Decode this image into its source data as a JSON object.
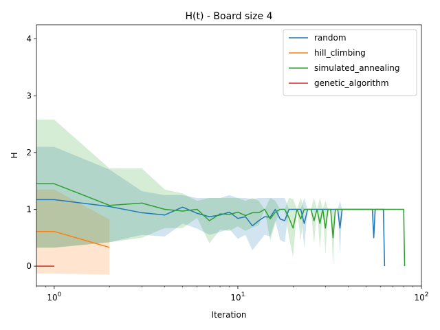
{
  "chart_data": {
    "type": "line",
    "title": "H(t) - Board size 4",
    "xlabel": "Iteration",
    "ylabel": "H",
    "xscale": "log",
    "xlim": [
      0.8,
      100
    ],
    "ylim": [
      -0.35,
      4.25
    ],
    "xticks": [
      {
        "value": 1,
        "base": "10",
        "exp": "0"
      },
      {
        "value": 10,
        "base": "10",
        "exp": "1"
      },
      {
        "value": 100,
        "base": "10",
        "exp": "2"
      }
    ],
    "yticks": [
      0,
      1,
      2,
      3,
      4
    ],
    "grid": false,
    "legend_position": "top-right",
    "series": [
      {
        "name": "random",
        "color": "#1f77b4",
        "x": [
          0.8,
          1,
          2,
          3,
          4,
          5,
          6,
          7,
          8,
          9,
          10,
          11,
          12,
          13,
          14,
          15,
          16,
          17,
          18,
          19,
          20,
          21,
          22,
          23,
          24,
          25,
          26,
          27,
          28,
          29,
          30,
          31,
          32,
          33,
          34,
          35,
          36,
          37,
          38,
          40,
          45,
          50,
          54,
          55,
          56,
          60,
          62,
          63
        ],
        "y": [
          1.17,
          1.17,
          1.05,
          0.94,
          0.9,
          1.04,
          0.93,
          0.87,
          0.9,
          0.95,
          0.84,
          0.87,
          0.71,
          0.8,
          0.87,
          0.86,
          1.0,
          0.83,
          0.8,
          1.0,
          1.0,
          1.0,
          1.0,
          0.75,
          1.0,
          1.0,
          1.0,
          1.0,
          1.0,
          1.0,
          1.0,
          1.0,
          1.0,
          1.0,
          1.0,
          1.0,
          0.67,
          1.0,
          1.0,
          1.0,
          1.0,
          1.0,
          1.0,
          0.5,
          1.0,
          1.0,
          1.0,
          0.0
        ],
        "band_upper": [
          2.1,
          2.1,
          1.7,
          1.32,
          1.25,
          1.25,
          1.2,
          1.2,
          1.2,
          1.25,
          1.2,
          1.2,
          1.18,
          1.2,
          1.2,
          1.2,
          1.2,
          1.2,
          1.2,
          1.0,
          1.0,
          1.0,
          1.0,
          1.2,
          1.0,
          1.0,
          1.0,
          1.0,
          1.0,
          1.0,
          1.0,
          1.0,
          1.0,
          1.0,
          1.0,
          1.0,
          1.15,
          1.0,
          1.0,
          1.0,
          1.0,
          1.0,
          1.0,
          1.0,
          1.0,
          1.0,
          1.0,
          1.0
        ],
        "band_lower": [
          0.33,
          0.33,
          0.42,
          0.55,
          0.52,
          0.75,
          0.66,
          0.55,
          0.6,
          0.65,
          0.48,
          0.55,
          0.28,
          0.42,
          0.55,
          0.52,
          0.8,
          0.46,
          0.42,
          1.0,
          1.0,
          1.0,
          1.0,
          0.32,
          1.0,
          1.0,
          1.0,
          1.0,
          1.0,
          1.0,
          1.0,
          1.0,
          1.0,
          1.0,
          1.0,
          1.0,
          0.2,
          1.0,
          1.0,
          1.0,
          1.0,
          1.0,
          1.0,
          0.5,
          1.0,
          1.0,
          1.0,
          0.0
        ]
      },
      {
        "name": "hill_climbing",
        "color": "#ff7f0e",
        "x": [
          0.8,
          1,
          2
        ],
        "y": [
          0.61,
          0.61,
          0.33
        ],
        "band_upper": [
          1.35,
          1.35,
          0.82
        ],
        "band_lower": [
          -0.13,
          -0.13,
          -0.15
        ]
      },
      {
        "name": "simulated_annealing",
        "color": "#2ca02c",
        "x": [
          0.8,
          1,
          2,
          3,
          4,
          5,
          6,
          7,
          8,
          9,
          10,
          11,
          12,
          13,
          14,
          15,
          16,
          17,
          18,
          19,
          20,
          21,
          22,
          23,
          24,
          25,
          26,
          27,
          28,
          29,
          30,
          31,
          32,
          33,
          34,
          35,
          36,
          40,
          50,
          60,
          70,
          80,
          81
        ],
        "y": [
          1.45,
          1.45,
          1.07,
          1.11,
          1.0,
          0.97,
          1.0,
          0.8,
          0.92,
          0.91,
          0.95,
          0.89,
          0.94,
          0.94,
          1.0,
          0.83,
          0.95,
          1.0,
          1.0,
          0.85,
          0.67,
          1.0,
          0.83,
          1.0,
          1.0,
          1.0,
          0.8,
          1.0,
          0.75,
          1.0,
          0.67,
          1.0,
          1.0,
          0.5,
          1.0,
          1.0,
          1.0,
          1.0,
          1.0,
          1.0,
          1.0,
          1.0,
          0.0
        ],
        "band_upper": [
          2.58,
          2.58,
          1.72,
          1.72,
          1.35,
          1.28,
          1.15,
          1.2,
          1.2,
          1.2,
          1.2,
          1.15,
          1.2,
          1.15,
          1.0,
          1.2,
          1.15,
          1.0,
          1.0,
          1.2,
          1.18,
          1.0,
          1.2,
          1.0,
          1.0,
          1.0,
          1.2,
          1.0,
          1.2,
          1.0,
          1.15,
          1.0,
          1.0,
          1.0,
          1.0,
          1.0,
          1.0,
          1.0,
          1.0,
          1.0,
          1.0,
          1.0,
          1.0
        ],
        "band_lower": [
          0.32,
          0.32,
          0.42,
          0.5,
          0.67,
          0.67,
          0.85,
          0.4,
          0.64,
          0.62,
          0.7,
          0.62,
          0.68,
          0.72,
          1.0,
          0.45,
          0.75,
          1.0,
          1.0,
          0.5,
          0.16,
          1.0,
          0.45,
          1.0,
          1.0,
          1.0,
          0.4,
          1.0,
          0.3,
          1.0,
          0.2,
          1.0,
          1.0,
          0.0,
          1.0,
          1.0,
          1.0,
          1.0,
          1.0,
          1.0,
          1.0,
          1.0,
          0.0
        ]
      },
      {
        "name": "genetic_algorithm",
        "color": "#d62728",
        "x": [
          0.8,
          1
        ],
        "y": [
          0.0,
          0.0
        ],
        "band_upper": [
          0.0,
          0.0
        ],
        "band_lower": [
          0.0,
          0.0
        ]
      }
    ]
  }
}
